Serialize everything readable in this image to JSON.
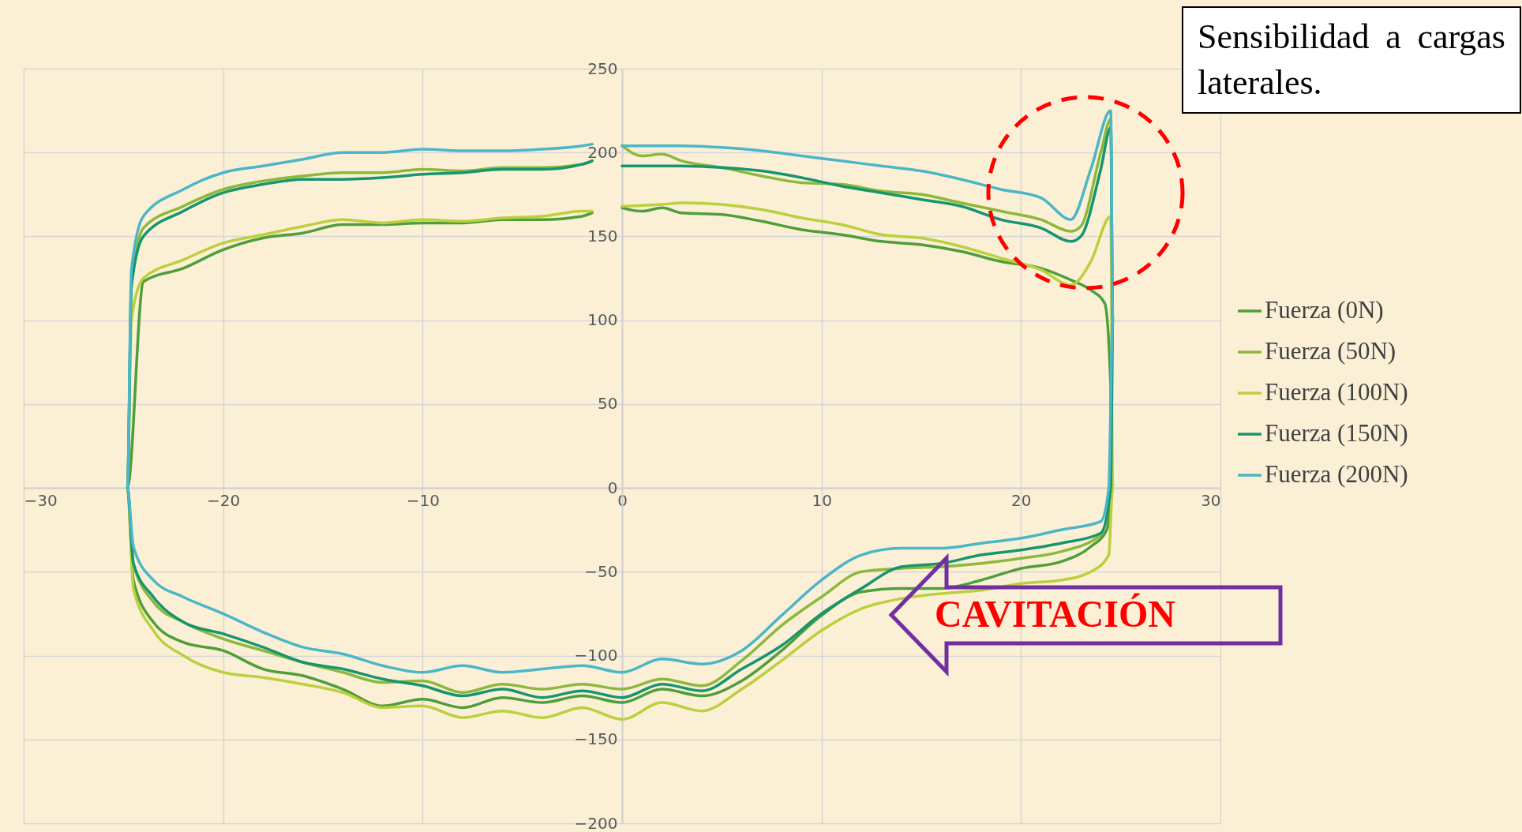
{
  "chart_data": {
    "type": "line",
    "xlim": [
      -30,
      30
    ],
    "xticks": [
      -30,
      -20,
      -10,
      0,
      10,
      20,
      30
    ],
    "ylim": [
      -200,
      250
    ],
    "yticks": [
      -200,
      -150,
      -100,
      -50,
      0,
      50,
      100,
      150,
      200,
      250
    ],
    "grid": true,
    "legend": "right",
    "annotations": [
      "Sensibilidad a cargas laterales.",
      "CAVITACIÓN"
    ],
    "series": [
      {
        "name": "Fuerza (0N)",
        "color": "#4e9e3a",
        "x": [
          0,
          1,
          2,
          3,
          5,
          7,
          9,
          11,
          13,
          15,
          17,
          19,
          21,
          22.5,
          23.5,
          24.2,
          24.5,
          24.5,
          24.3,
          23.5,
          22,
          20,
          18,
          16,
          14,
          12,
          10,
          8,
          6,
          4,
          2,
          0,
          -2,
          -4,
          -6,
          -8,
          -10,
          -12,
          -14,
          -16,
          -18,
          -20,
          -22,
          -23.5,
          -24.5,
          -24.8,
          -24,
          -22,
          -20,
          -18,
          -16,
          -14,
          -12,
          -10,
          -8,
          -6,
          -4,
          -2,
          -1.5
        ],
        "values": [
          167,
          165,
          167,
          164,
          163,
          159,
          154,
          151,
          147,
          145,
          141,
          135,
          131,
          124,
          118,
          110,
          60,
          0,
          -25,
          -35,
          -44,
          -48,
          -55,
          -60,
          -60,
          -62,
          -76,
          -97,
          -115,
          -124,
          -120,
          -128,
          -124,
          -128,
          -125,
          -131,
          -126,
          -130,
          -120,
          -112,
          -108,
          -97,
          -92,
          -80,
          -55,
          0,
          123,
          131,
          142,
          149,
          152,
          157,
          157,
          158,
          158,
          160,
          160,
          162,
          164
        ]
      },
      {
        "name": "Fuerza (50N)",
        "color": "#8cb83c",
        "x": [
          0,
          1,
          2,
          3,
          5,
          7,
          9,
          11,
          13,
          15,
          17,
          19,
          21,
          22.5,
          23,
          24,
          24.5,
          24.6,
          24.5,
          24,
          22,
          20,
          18,
          16,
          14,
          12,
          10,
          8,
          6,
          4,
          2,
          0,
          -2,
          -4,
          -6,
          -8,
          -10,
          -12,
          -14,
          -16,
          -18,
          -20,
          -22,
          -23.5,
          -24.5,
          -24.8,
          -24.6,
          -24,
          -22,
          -20,
          -18,
          -16,
          -14,
          -12,
          -10,
          -8,
          -6,
          -4,
          -2,
          -1.5
        ],
        "values": [
          204,
          198,
          199,
          195,
          191,
          186,
          182,
          181,
          177,
          175,
          170,
          165,
          160,
          153,
          156,
          200,
          220,
          100,
          0,
          -28,
          -38,
          -42,
          -45,
          -47,
          -48,
          -50,
          -65,
          -82,
          -103,
          -118,
          -114,
          -120,
          -117,
          -120,
          -117,
          -122,
          -115,
          -116,
          -110,
          -104,
          -97,
          -90,
          -80,
          -68,
          -45,
          0,
          120,
          155,
          168,
          178,
          183,
          186,
          188,
          188,
          190,
          189,
          191,
          191,
          193,
          195
        ]
      },
      {
        "name": "Fuerza (100N)",
        "color": "#bccf3c",
        "x": [
          0,
          2,
          3,
          5,
          7,
          9,
          11,
          13,
          15,
          17,
          19,
          21,
          22.5,
          23.5,
          24.5,
          24.6,
          24.4,
          23.5,
          22,
          20,
          18,
          16,
          14,
          12,
          10,
          8,
          6,
          4,
          2,
          0,
          -2,
          -4,
          -6,
          -8,
          -10,
          -12,
          -14,
          -16,
          -18,
          -20,
          -22,
          -23.5,
          -24.5,
          -24.8,
          -24.6,
          -24,
          -22,
          -20,
          -18,
          -16,
          -14,
          -12,
          -10,
          -8,
          -6,
          -4,
          -2,
          -1.5
        ],
        "values": [
          168,
          169,
          170,
          169,
          166,
          161,
          157,
          151,
          149,
          144,
          137,
          130,
          121,
          135,
          162,
          0,
          -40,
          -50,
          -55,
          -57,
          -61,
          -63,
          -66,
          -72,
          -85,
          -103,
          -120,
          -133,
          -128,
          -138,
          -131,
          -137,
          -133,
          -137,
          -130,
          -131,
          -122,
          -117,
          -113,
          -110,
          -100,
          -85,
          -60,
          0,
          100,
          125,
          136,
          146,
          151,
          156,
          160,
          158,
          160,
          159,
          161,
          162,
          165,
          165
        ]
      },
      {
        "name": "Fuerza (150N)",
        "color": "#16956e",
        "x": [
          0,
          3,
          5,
          7,
          9,
          11,
          13,
          15,
          17,
          19,
          21,
          22.5,
          23,
          24,
          24.5,
          24.6,
          24.5,
          24,
          22,
          20,
          18,
          16,
          14,
          12,
          10,
          8,
          6,
          4,
          2,
          0,
          -2,
          -4,
          -6,
          -8,
          -10,
          -12,
          -14,
          -16,
          -18,
          -20,
          -22,
          -23.5,
          -24.5,
          -24.8,
          -24.6,
          -24,
          -22,
          -20,
          -18,
          -16,
          -14,
          -12,
          -10,
          -8,
          -6,
          -4,
          -2,
          -1.5
        ],
        "values": [
          192,
          192,
          191,
          189,
          185,
          180,
          176,
          172,
          168,
          160,
          155,
          147,
          150,
          190,
          215,
          100,
          0,
          -27,
          -33,
          -37,
          -40,
          -45,
          -47,
          -60,
          -75,
          -94,
          -108,
          -121,
          -117,
          -125,
          -121,
          -125,
          -120,
          -124,
          -118,
          -114,
          -108,
          -104,
          -95,
          -87,
          -80,
          -65,
          -45,
          0,
          120,
          150,
          165,
          176,
          181,
          184,
          184,
          185,
          187,
          188,
          190,
          190,
          193,
          195
        ]
      },
      {
        "name": "Fuerza (200N)",
        "color": "#4ab6c8",
        "x": [
          0,
          2,
          3,
          5,
          7,
          9,
          11,
          13,
          15,
          17,
          19,
          21,
          22.5,
          23.5,
          24.5,
          24.6,
          24.4,
          24,
          22,
          20,
          18,
          16,
          14,
          12,
          10,
          8,
          6,
          4,
          2,
          0,
          -2,
          -4,
          -6,
          -8,
          -10,
          -12,
          -14,
          -16,
          -18,
          -20,
          -22,
          -23.5,
          -24.5,
          -24.8,
          -24.6,
          -24,
          -22,
          -20,
          -18,
          -16,
          -14,
          -12,
          -10,
          -8,
          -6,
          -4,
          -2,
          -1.5
        ],
        "values": [
          204,
          204,
          204,
          203,
          201,
          198,
          195,
          192,
          189,
          184,
          178,
          173,
          160,
          190,
          225,
          100,
          0,
          -20,
          -25,
          -30,
          -33,
          -36,
          -36,
          -40,
          -55,
          -76,
          -97,
          -105,
          -102,
          -110,
          -106,
          -108,
          -110,
          -106,
          -110,
          -106,
          -99,
          -95,
          -86,
          -75,
          -65,
          -55,
          -35,
          0,
          130,
          162,
          178,
          188,
          192,
          196,
          200,
          200,
          202,
          201,
          201,
          202,
          204,
          205
        ]
      }
    ]
  }
}
